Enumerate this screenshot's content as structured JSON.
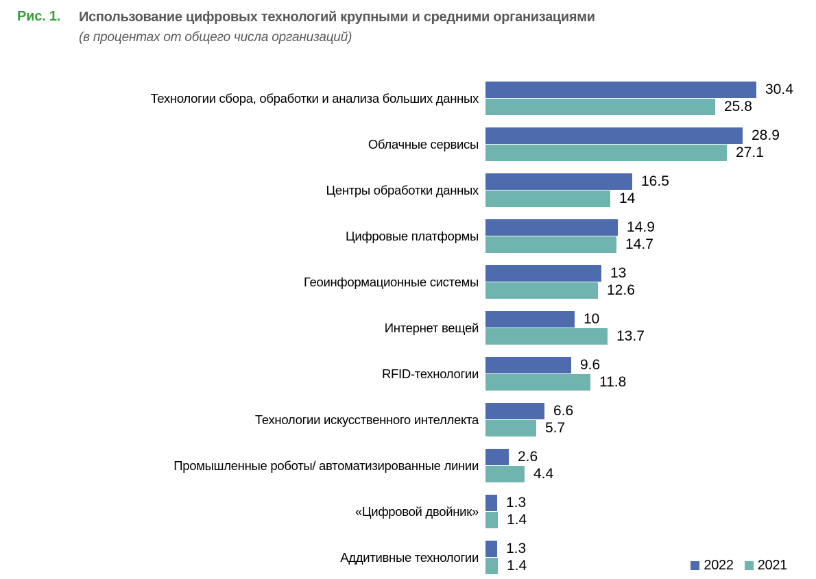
{
  "figure": {
    "label": "Рис. 1.",
    "title": "Использование цифровых технологий крупными и средними организациями",
    "subtitle": "(в процентах от общего числа организаций)"
  },
  "colors": {
    "series_2022": "#4e6bad",
    "series_2021": "#6fb4af",
    "figure_label_green": "#3a9e3d",
    "title_gray": "#595959"
  },
  "chart_data": {
    "type": "bar",
    "orientation": "horizontal",
    "unit": "percent of organizations",
    "title": "Использование цифровых технологий крупными и средними организациями",
    "subtitle": "(в процентах от общего числа организаций)",
    "categories": [
      "Технологии сбора, обработки и анализа больших данных",
      "Облачные сервисы",
      "Центры обработки данных",
      "Цифровые платформы",
      "Геоинформационные системы",
      "Интернет вещей",
      "RFID-технологии",
      "Технологии искусственного интеллекта",
      "Промышленные роботы/ автоматизированные линии",
      "«Цифровой двойник»",
      "Аддитивные технологии"
    ],
    "series": [
      {
        "name": "2022",
        "color": "#4e6bad",
        "values": [
          30.4,
          28.9,
          16.5,
          14.9,
          13,
          10,
          9.6,
          6.6,
          2.6,
          1.3,
          1.3
        ]
      },
      {
        "name": "2021",
        "color": "#6fb4af",
        "values": [
          25.8,
          27.1,
          14,
          14.7,
          12.6,
          13.7,
          11.8,
          5.7,
          4.4,
          1.4,
          1.4
        ]
      }
    ],
    "xlim": [
      0,
      34.5
    ],
    "value_labels": true,
    "grid": false,
    "axes_visible": false,
    "legend_position": "bottom-right"
  },
  "legend": {
    "items": [
      {
        "label": "2022",
        "color": "#4e6bad"
      },
      {
        "label": "2021",
        "color": "#6fb4af"
      }
    ]
  }
}
